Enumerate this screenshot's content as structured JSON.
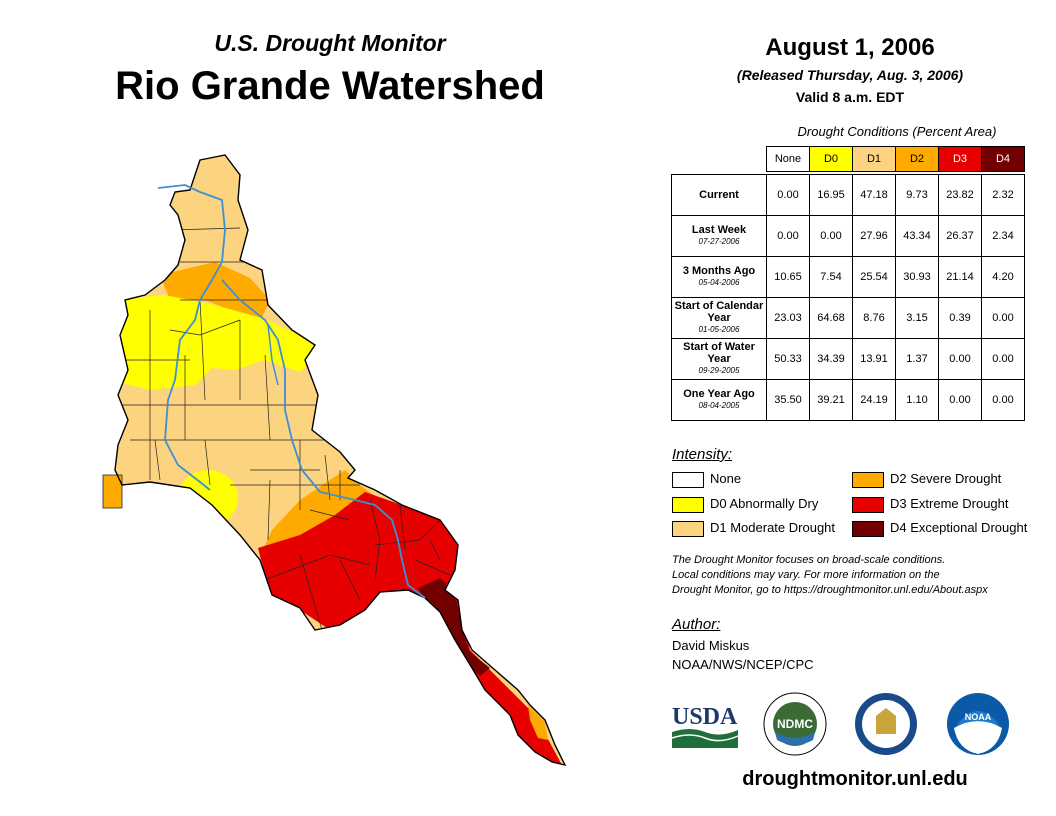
{
  "header": {
    "subtitle": "U.S. Drought Monitor",
    "title": "Rio Grande Watershed",
    "date": "August 1, 2006",
    "released": "(Released Thursday, Aug. 3, 2006)",
    "valid": "Valid 8 a.m. EDT"
  },
  "table": {
    "caption": "Drought Conditions (Percent Area)",
    "columns": [
      "None",
      "D0",
      "D1",
      "D2",
      "D3",
      "D4"
    ],
    "column_colors": [
      "#ffffff",
      "#ffff00",
      "#fcd37f",
      "#ffaa00",
      "#e60000",
      "#730000"
    ],
    "rows": [
      {
        "label": "Current",
        "date": "",
        "values": [
          "0.00",
          "16.95",
          "47.18",
          "9.73",
          "23.82",
          "2.32"
        ]
      },
      {
        "label": "Last Week",
        "date": "07-27-2006",
        "values": [
          "0.00",
          "0.00",
          "27.96",
          "43.34",
          "26.37",
          "2.34"
        ]
      },
      {
        "label": "3 Months Ago",
        "date": "05-04-2006",
        "values": [
          "10.65",
          "7.54",
          "25.54",
          "30.93",
          "21.14",
          "4.20"
        ]
      },
      {
        "label": "Start of Calendar Year",
        "date": "01-05-2006",
        "values": [
          "23.03",
          "64.68",
          "8.76",
          "3.15",
          "0.39",
          "0.00"
        ]
      },
      {
        "label": "Start of Water Year",
        "date": "09-29-2005",
        "values": [
          "50.33",
          "34.39",
          "13.91",
          "1.37",
          "0.00",
          "0.00"
        ]
      },
      {
        "label": "One Year Ago",
        "date": "08-04-2005",
        "values": [
          "35.50",
          "39.21",
          "24.19",
          "1.10",
          "0.00",
          "0.00"
        ]
      }
    ]
  },
  "legend": {
    "title": "Intensity:",
    "items": [
      {
        "label": "None",
        "color": "#ffffff"
      },
      {
        "label": "D0 Abnormally Dry",
        "color": "#ffff00"
      },
      {
        "label": "D1 Moderate Drought",
        "color": "#fcd37f"
      },
      {
        "label": "D2 Severe Drought",
        "color": "#ffaa00"
      },
      {
        "label": "D3 Extreme Drought",
        "color": "#e60000"
      },
      {
        "label": "D4 Exceptional Drought",
        "color": "#730000"
      }
    ]
  },
  "note": {
    "line1": "The Drought Monitor focuses on broad-scale conditions.",
    "line2": "Local conditions may vary. For more information on the",
    "line3": "Drought Monitor, go to https://droughtmonitor.unl.edu/About.aspx"
  },
  "author": {
    "title": "Author:",
    "name": "David Miskus",
    "org": "NOAA/NWS/NCEP/CPC"
  },
  "logos": {
    "usda": "USDA",
    "ndmc": "NDMC",
    "noaa": "NOAA"
  },
  "site": "droughtmonitor.unl.edu",
  "colors": {
    "river": "#3d8fd6",
    "county_line": "#222222"
  }
}
